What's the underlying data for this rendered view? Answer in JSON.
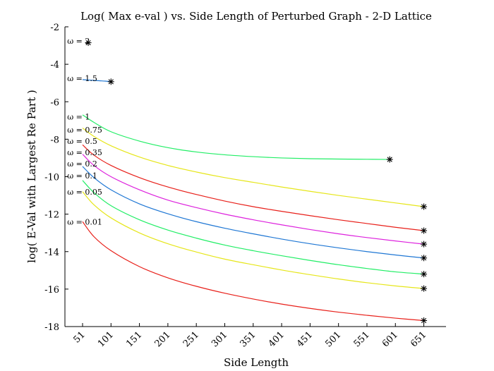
{
  "chart_data": {
    "type": "line",
    "title": "Log( Max e-val ) vs. Side Length of Perturbed Graph - 2-D Lattice",
    "xlabel": "Side Length",
    "ylabel": "log( E-Val with Largest Re Part )",
    "xlim": [
      20,
      690
    ],
    "ylim": [
      -18,
      -2
    ],
    "x_ticks": [
      51,
      101,
      151,
      201,
      251,
      301,
      351,
      401,
      451,
      501,
      551,
      601,
      651
    ],
    "y_ticks": [
      -2,
      -4,
      -6,
      -8,
      -10,
      -12,
      -14,
      -16,
      -18
    ],
    "grid": false,
    "series": [
      {
        "name": "ω = 2",
        "color": "#000000",
        "x": [],
        "y": [],
        "end_marker": {
          "x": 61,
          "y": -2.85
        }
      },
      {
        "name": "ω = 1.5",
        "color": "#1f77d4",
        "x": [
          51,
          61,
          71,
          81,
          91,
          101
        ],
        "y": [
          -4.82,
          -4.84,
          -4.86,
          -4.88,
          -4.9,
          -4.93
        ],
        "end_marker": {
          "x": 101,
          "y": -4.93
        }
      },
      {
        "name": "ω = 1",
        "color": "#22ee66",
        "x": [
          51,
          71,
          101,
          151,
          201,
          251,
          301,
          351,
          401,
          451,
          501,
          551,
          591
        ],
        "y": [
          -6.7,
          -7.1,
          -7.6,
          -8.1,
          -8.45,
          -8.68,
          -8.83,
          -8.93,
          -9.0,
          -9.04,
          -9.06,
          -9.07,
          -9.08
        ],
        "end_marker": {
          "x": 591,
          "y": -9.08
        }
      },
      {
        "name": "ω = 0.75",
        "color": "#e6e61a",
        "x": [
          51,
          71,
          101,
          151,
          201,
          251,
          301,
          351,
          401,
          451,
          501,
          551,
          601,
          651
        ],
        "y": [
          -7.4,
          -7.85,
          -8.35,
          -8.95,
          -9.4,
          -9.75,
          -10.05,
          -10.3,
          -10.55,
          -10.78,
          -11.0,
          -11.2,
          -11.4,
          -11.6
        ],
        "end_marker": {
          "x": 651,
          "y": -11.6
        }
      },
      {
        "name": "ω = 0.5",
        "color": "#e8201a",
        "x": [
          51,
          71,
          101,
          151,
          201,
          251,
          301,
          351,
          401,
          451,
          501,
          551,
          601,
          651
        ],
        "y": [
          -8.3,
          -8.85,
          -9.4,
          -10.05,
          -10.55,
          -10.95,
          -11.3,
          -11.6,
          -11.85,
          -12.08,
          -12.3,
          -12.5,
          -12.7,
          -12.88
        ],
        "end_marker": {
          "x": 651,
          "y": -12.88
        }
      },
      {
        "name": "ω = 0.35",
        "color": "#dd22dd",
        "x": [
          51,
          71,
          101,
          151,
          201,
          251,
          301,
          351,
          401,
          451,
          501,
          551,
          601,
          651
        ],
        "y": [
          -8.8,
          -9.4,
          -10.0,
          -10.7,
          -11.25,
          -11.65,
          -12.0,
          -12.3,
          -12.57,
          -12.82,
          -13.05,
          -13.25,
          -13.43,
          -13.6
        ],
        "end_marker": {
          "x": 651,
          "y": -13.6
        }
      },
      {
        "name": "ω = 0.2",
        "color": "#1f77d4",
        "x": [
          51,
          71,
          101,
          151,
          201,
          251,
          301,
          351,
          401,
          451,
          501,
          551,
          601,
          651
        ],
        "y": [
          -9.45,
          -10.05,
          -10.7,
          -11.45,
          -11.98,
          -12.4,
          -12.75,
          -13.05,
          -13.33,
          -13.58,
          -13.8,
          -14.0,
          -14.18,
          -14.34
        ],
        "end_marker": {
          "x": 651,
          "y": -14.34
        }
      },
      {
        "name": "ω = 0.1",
        "color": "#22ee66",
        "x": [
          51,
          71,
          101,
          151,
          201,
          251,
          301,
          351,
          401,
          451,
          501,
          551,
          601,
          651
        ],
        "y": [
          -10.2,
          -10.85,
          -11.55,
          -12.3,
          -12.85,
          -13.28,
          -13.65,
          -13.95,
          -14.22,
          -14.47,
          -14.7,
          -14.9,
          -15.08,
          -15.2
        ],
        "end_marker": {
          "x": 651,
          "y": -15.2
        }
      },
      {
        "name": "ω = 0.05",
        "color": "#e6e61a",
        "x": [
          51,
          71,
          101,
          151,
          201,
          251,
          301,
          351,
          401,
          451,
          501,
          551,
          601,
          651
        ],
        "y": [
          -10.8,
          -11.5,
          -12.2,
          -13.0,
          -13.58,
          -14.02,
          -14.4,
          -14.7,
          -14.98,
          -15.23,
          -15.46,
          -15.66,
          -15.83,
          -15.97
        ],
        "end_marker": {
          "x": 651,
          "y": -15.97
        }
      },
      {
        "name": "ω = 0.01",
        "color": "#e8201a",
        "x": [
          51,
          71,
          101,
          151,
          201,
          251,
          301,
          351,
          401,
          451,
          501,
          551,
          601,
          651
        ],
        "y": [
          -12.4,
          -13.2,
          -13.95,
          -14.8,
          -15.4,
          -15.85,
          -16.22,
          -16.53,
          -16.8,
          -17.03,
          -17.23,
          -17.4,
          -17.55,
          -17.68
        ],
        "end_marker": {
          "x": 651,
          "y": -17.68
        }
      }
    ],
    "annotations": [
      {
        "text": "ω = 2",
        "x": 24,
        "y": -2.75
      },
      {
        "text": "ω = 1.5",
        "x": 24,
        "y": -4.75
      },
      {
        "text": "ω = 1",
        "x": 24,
        "y": -6.8
      },
      {
        "text": "ω = 0.75",
        "x": 24,
        "y": -7.5
      },
      {
        "text": "ω = 0.5",
        "x": 24,
        "y": -8.1
      },
      {
        "text": "ω = 0.35",
        "x": 24,
        "y": -8.7
      },
      {
        "text": "ω = 0.2",
        "x": 24,
        "y": -9.3
      },
      {
        "text": "ω = 0.1",
        "x": 24,
        "y": -9.95
      },
      {
        "text": "ω = 0.05",
        "x": 24,
        "y": -10.8
      },
      {
        "text": "ω = 0.01",
        "x": 24,
        "y": -12.4
      }
    ]
  }
}
